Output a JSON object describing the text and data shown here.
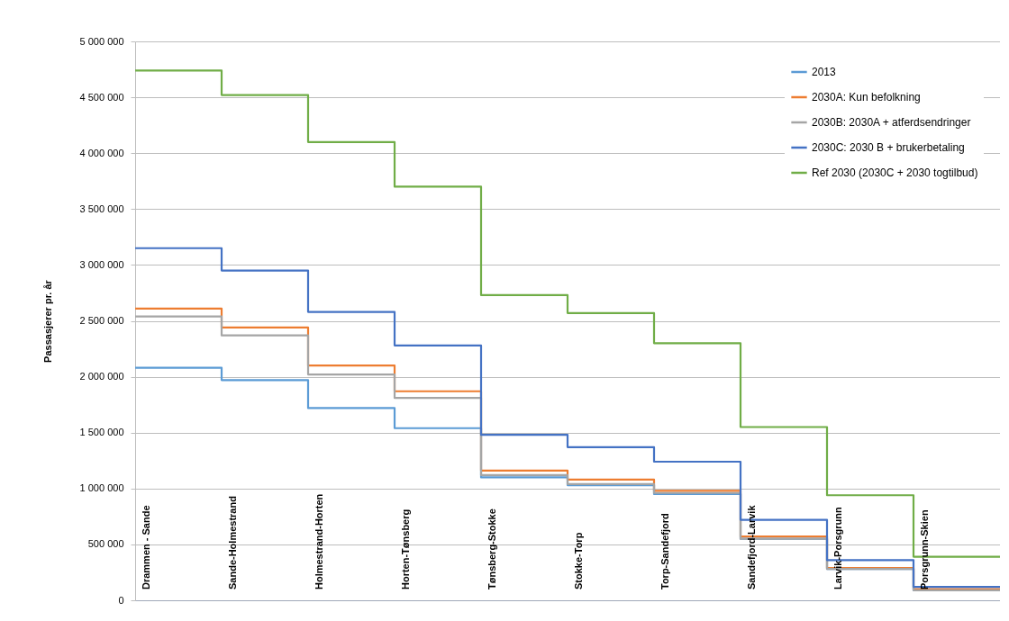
{
  "chart_data": {
    "type": "step",
    "ylabel": "Passasjerer pr. år",
    "categories": [
      "Drammen - Sande",
      "Sande-Holmestrand",
      "Holmestrand-Horten",
      "Horten-Tønsberg",
      "Tønsberg-Stokke",
      "Stokke-Torp",
      "Torp-Sandefjord",
      "Sandefjord-Larvik",
      "Larvik-Porsgrunn",
      "Porsgrunn-Skien"
    ],
    "series": [
      {
        "name": "2013",
        "color": "#5b9bd5",
        "values": [
          2080000,
          1970000,
          1720000,
          1540000,
          1100000,
          1030000,
          950000,
          550000,
          280000,
          90000
        ]
      },
      {
        "name": "2030A: Kun befolkning",
        "color": "#ed7d31",
        "values": [
          2610000,
          2440000,
          2100000,
          1870000,
          1160000,
          1080000,
          980000,
          570000,
          290000,
          100000
        ]
      },
      {
        "name": "2030B: 2030A + atferdsendringer",
        "color": "#a5a5a5",
        "values": [
          2540000,
          2370000,
          2020000,
          1810000,
          1120000,
          1040000,
          960000,
          550000,
          280000,
          90000
        ]
      },
      {
        "name": "2030C: 2030 B + brukerbetaling",
        "color": "#4472c4",
        "values": [
          3150000,
          2950000,
          2580000,
          2280000,
          1480000,
          1370000,
          1240000,
          720000,
          360000,
          120000
        ]
      },
      {
        "name": "Ref 2030 (2030C + 2030 togtilbud)",
        "color": "#70ad47",
        "values": [
          4740000,
          4520000,
          4100000,
          3700000,
          2730000,
          2570000,
          2300000,
          1550000,
          940000,
          390000
        ]
      }
    ],
    "ylim": [
      0,
      5000000
    ],
    "yticks": [
      {
        "value": 0,
        "label": "0"
      },
      {
        "value": 500000,
        "label": "500 000"
      },
      {
        "value": 1000000,
        "label": "1 000 000"
      },
      {
        "value": 1500000,
        "label": "1 500 000"
      },
      {
        "value": 2000000,
        "label": "2 000 000"
      },
      {
        "value": 2500000,
        "label": "2 500 000"
      },
      {
        "value": 3000000,
        "label": "3 000 000"
      },
      {
        "value": 3500000,
        "label": "3 500 000"
      },
      {
        "value": 4000000,
        "label": "4 000 000"
      },
      {
        "value": 4500000,
        "label": "4 500 000"
      },
      {
        "value": 5000000,
        "label": "5 000 000"
      }
    ],
    "grid": "y",
    "legend": "top right",
    "marker": "none",
    "line_style": "solid"
  }
}
